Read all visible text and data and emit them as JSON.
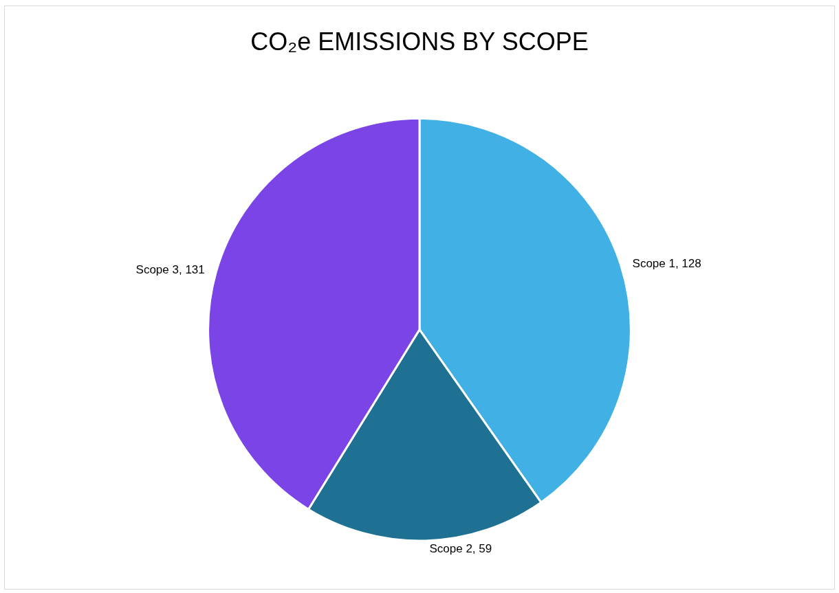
{
  "chart_data": {
    "type": "pie",
    "title": "CO₂e EMISSIONS BY SCOPE",
    "categories": [
      "Scope 1",
      "Scope 2",
      "Scope 3"
    ],
    "values": [
      128,
      59,
      131
    ],
    "colors": [
      "#41b0e4",
      "#1f7193",
      "#7a44e6"
    ],
    "value_labels": [
      ", 128",
      ", 59",
      ", 131"
    ],
    "legend": false
  }
}
